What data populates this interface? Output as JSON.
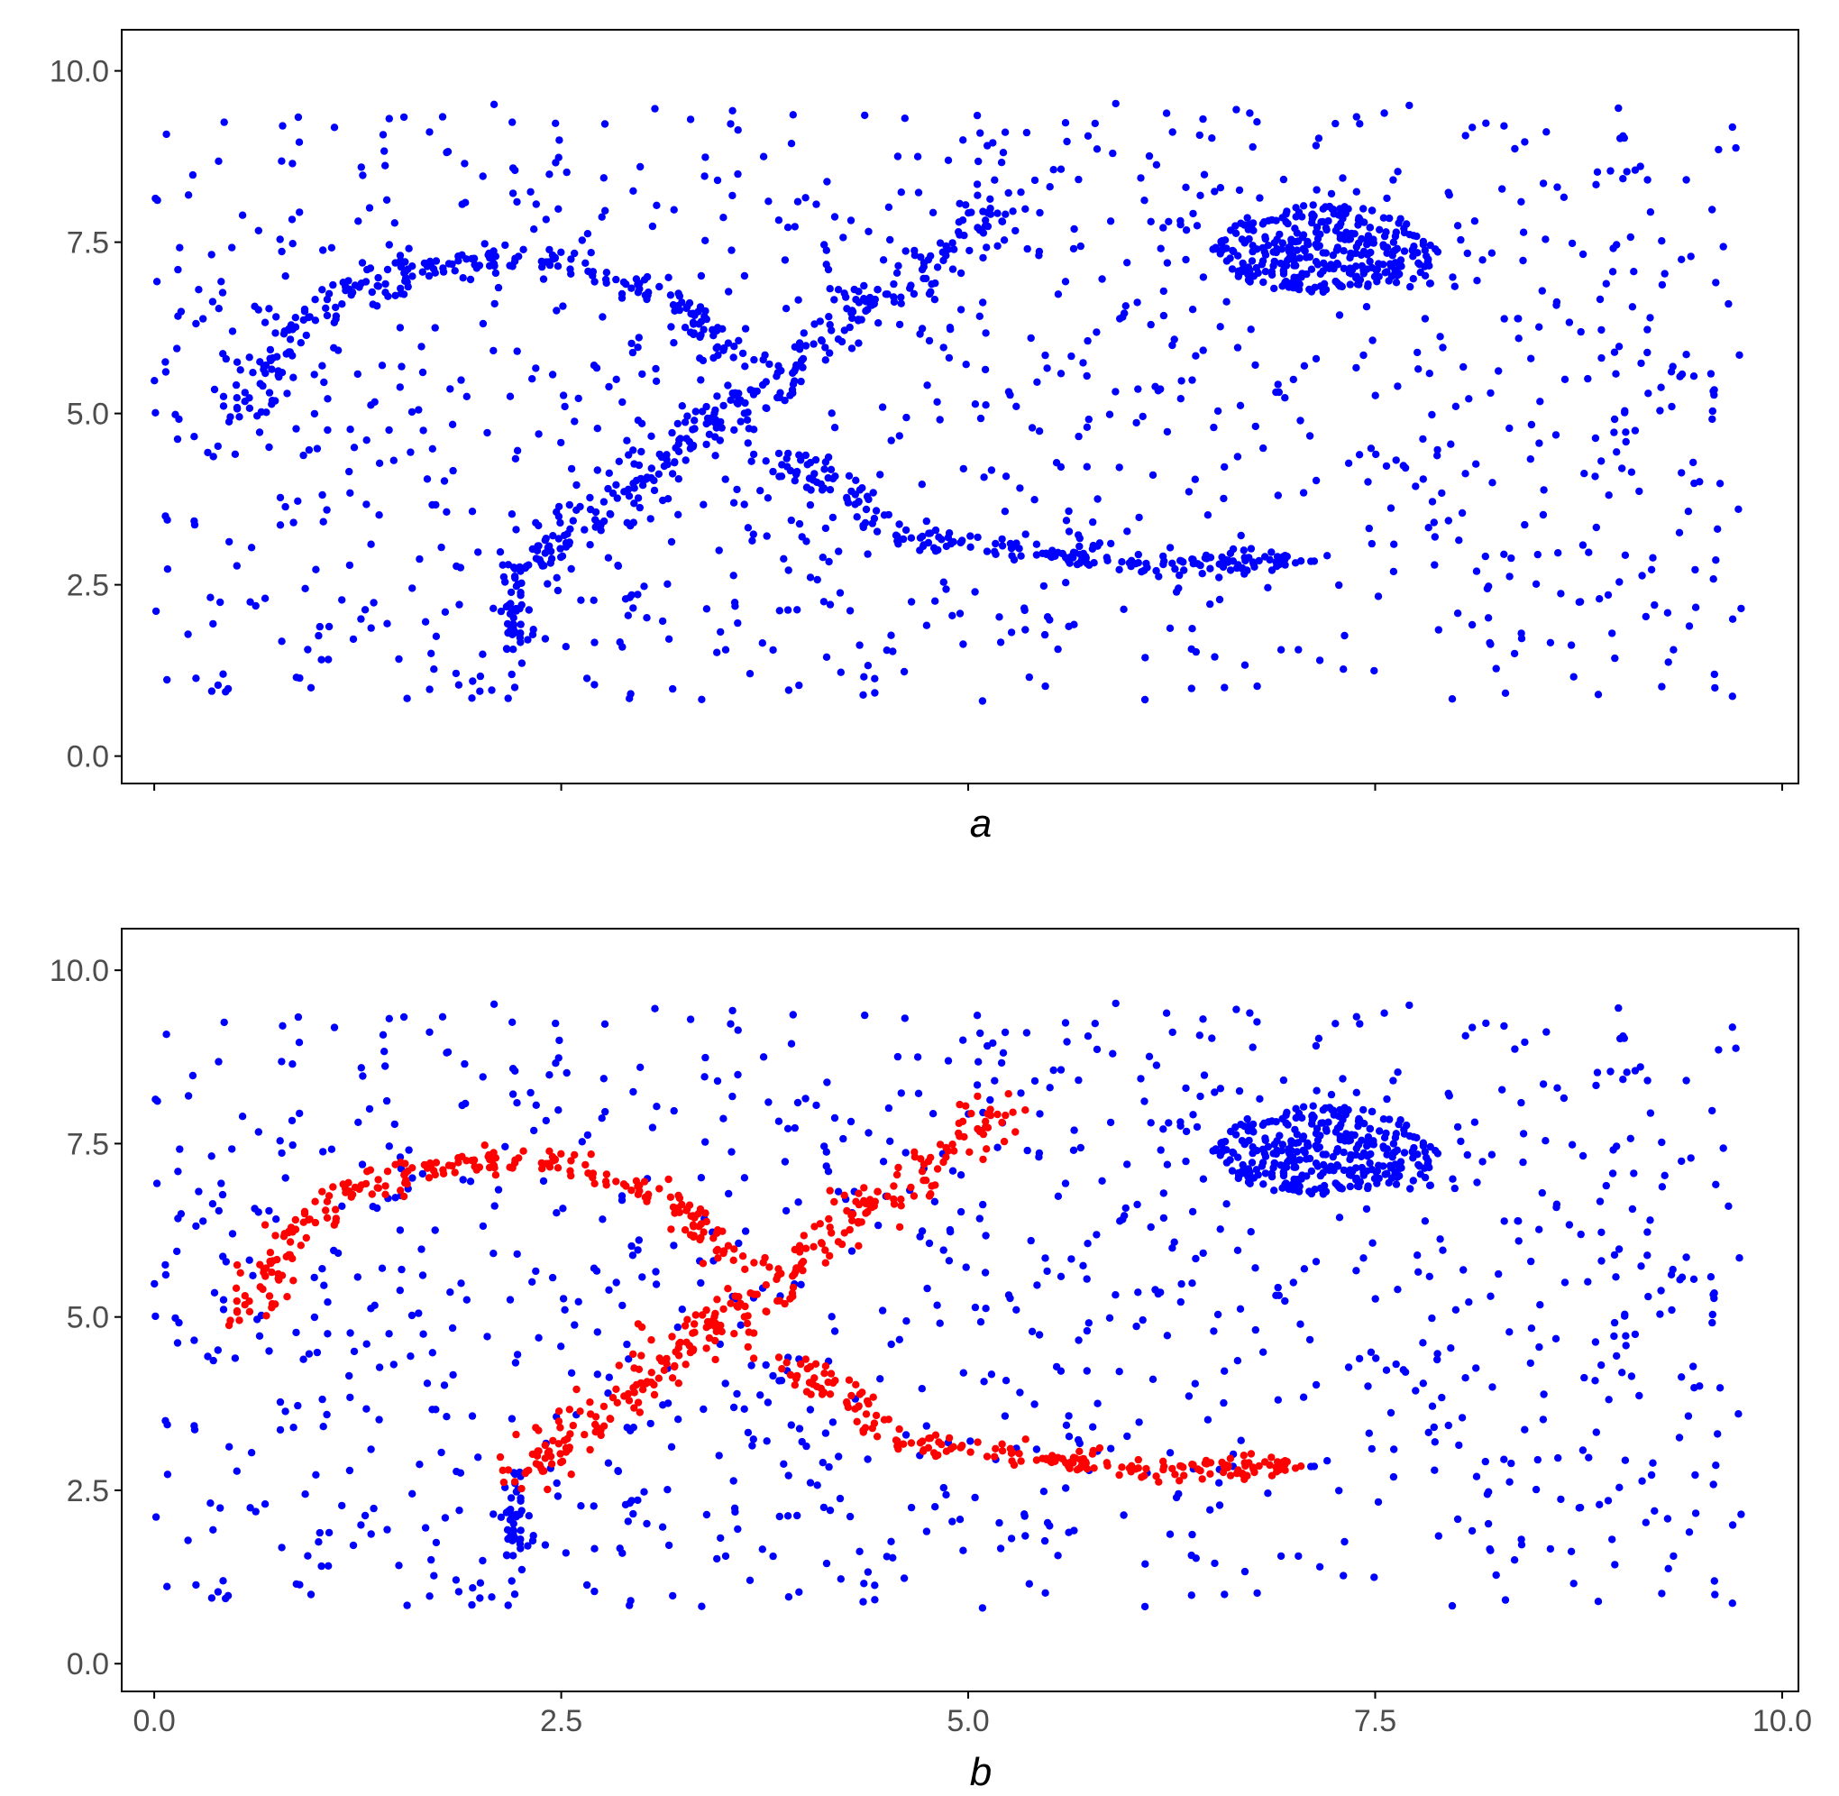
{
  "colors": {
    "background": "#ffffff",
    "blue": "#0000ff",
    "red": "#ff0000",
    "axis": "#000000",
    "tick_text": "#4d4d4d"
  },
  "chart_data": [
    {
      "type": "scatter",
      "panel": "a",
      "xlabel": "a",
      "xlim": [
        -0.2,
        10.1
      ],
      "ylim": [
        -0.4,
        10.6
      ],
      "xticks": [
        "0.0",
        "2.5",
        "5.0",
        "7.5",
        "10.0"
      ],
      "yticks": [
        "0.0",
        "2.5",
        "5.0",
        "7.5",
        "10.0"
      ],
      "x_tick_labels_shown": false,
      "grid": false,
      "series": [
        {
          "color": "blue",
          "description_values": "all points"
        }
      ]
    },
    {
      "type": "scatter",
      "panel": "b",
      "xlabel": "b",
      "xlim": [
        -0.2,
        10.1
      ],
      "ylim": [
        -0.4,
        10.6
      ],
      "xticks": [
        "0.0",
        "2.5",
        "5.0",
        "7.5",
        "10.0"
      ],
      "yticks": [
        "0.0",
        "2.5",
        "5.0",
        "7.5",
        "10.0"
      ],
      "x_tick_labels_shown": true,
      "grid": false,
      "series": [
        {
          "color": "blue"
        },
        {
          "color": "red"
        }
      ]
    }
  ],
  "structures": {
    "arc": {
      "center": [
        2.15,
        4.7
      ],
      "radius_x": 1.55,
      "radius_y": 2.6,
      "theta_start_deg": 175,
      "theta_end_deg": 25,
      "noise": 0.1
    },
    "diagonal": {
      "x0": 2.2,
      "y0": 2.6,
      "x1": 5.3,
      "y1": 8.2,
      "noise": 0.12
    },
    "lower_branch": {
      "points": [
        [
          3.9,
          4.4
        ],
        [
          4.6,
          3.2
        ],
        [
          5.5,
          2.95
        ],
        [
          6.2,
          2.8
        ],
        [
          7.05,
          2.85
        ]
      ],
      "noise": 0.09
    },
    "vertical_stub": {
      "x": 2.2,
      "y0": 1.5,
      "y1": 2.8,
      "noise": 0.05
    },
    "blob": {
      "center": [
        7.2,
        7.4
      ],
      "radius_x": 0.7,
      "radius_y": 0.65
    },
    "background_points": 1050,
    "seed": 73
  }
}
